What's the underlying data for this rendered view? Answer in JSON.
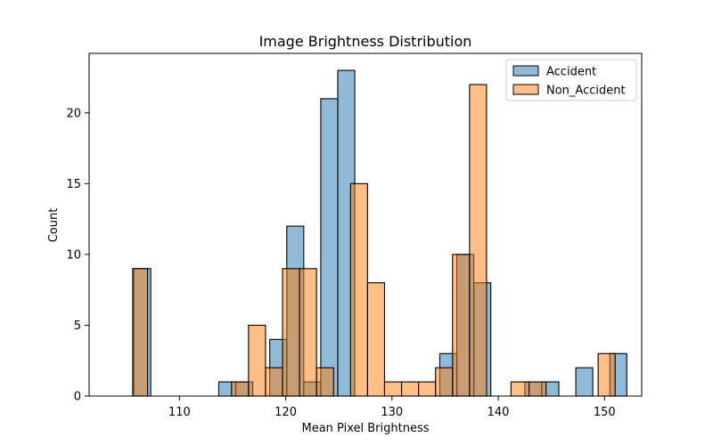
{
  "chart_data": {
    "type": "bar",
    "title": "Image Brightness Distribution",
    "xlabel": "Mean Pixel Brightness",
    "ylabel": "Count",
    "xlim": [
      101.5,
      153.5
    ],
    "ylim": [
      0,
      24.2
    ],
    "xticks": [
      110,
      120,
      130,
      140,
      150
    ],
    "yticks": [
      0,
      5,
      10,
      15,
      20
    ],
    "grid": false,
    "legend": "top-right",
    "series": [
      {
        "name": "Accident",
        "color": "#1f77b4",
        "bins": [
          {
            "x0": 105.7,
            "x1": 107.3,
            "count": 9
          },
          {
            "x0": 113.7,
            "x1": 115.3,
            "count": 1
          },
          {
            "x0": 115.3,
            "x1": 116.9,
            "count": 1
          },
          {
            "x0": 118.5,
            "x1": 120.1,
            "count": 4
          },
          {
            "x0": 120.1,
            "x1": 121.7,
            "count": 12
          },
          {
            "x0": 121.7,
            "x1": 123.3,
            "count": 1
          },
          {
            "x0": 123.3,
            "x1": 124.9,
            "count": 21
          },
          {
            "x0": 124.9,
            "x1": 126.5,
            "count": 23
          },
          {
            "x0": 134.5,
            "x1": 136.1,
            "count": 3
          },
          {
            "x0": 136.1,
            "x1": 137.7,
            "count": 10
          },
          {
            "x0": 137.7,
            "x1": 139.3,
            "count": 8
          },
          {
            "x0": 142.5,
            "x1": 144.1,
            "count": 1
          },
          {
            "x0": 144.1,
            "x1": 145.7,
            "count": 1
          },
          {
            "x0": 147.3,
            "x1": 148.9,
            "count": 2
          },
          {
            "x0": 150.5,
            "x1": 152.1,
            "count": 3
          }
        ]
      },
      {
        "name": "Non_Accident",
        "color": "#ff7f0e",
        "bins": [
          {
            "x0": 105.6,
            "x1": 107.0,
            "count": 9
          },
          {
            "x0": 114.9,
            "x1": 116.5,
            "count": 1
          },
          {
            "x0": 116.5,
            "x1": 118.1,
            "count": 5
          },
          {
            "x0": 118.1,
            "x1": 119.7,
            "count": 2
          },
          {
            "x0": 119.7,
            "x1": 121.3,
            "count": 9
          },
          {
            "x0": 121.3,
            "x1": 122.9,
            "count": 9
          },
          {
            "x0": 122.9,
            "x1": 124.5,
            "count": 2
          },
          {
            "x0": 124.5,
            "x1": 126.1,
            "count": 0
          },
          {
            "x0": 126.1,
            "x1": 127.7,
            "count": 15
          },
          {
            "x0": 127.7,
            "x1": 129.3,
            "count": 8
          },
          {
            "x0": 129.3,
            "x1": 130.9,
            "count": 1
          },
          {
            "x0": 130.9,
            "x1": 132.5,
            "count": 1
          },
          {
            "x0": 132.5,
            "x1": 134.1,
            "count": 1
          },
          {
            "x0": 134.1,
            "x1": 135.7,
            "count": 2
          },
          {
            "x0": 135.7,
            "x1": 137.3,
            "count": 10
          },
          {
            "x0": 137.3,
            "x1": 138.9,
            "count": 22
          },
          {
            "x0": 141.2,
            "x1": 142.9,
            "count": 1
          },
          {
            "x0": 142.9,
            "x1": 144.5,
            "count": 1
          },
          {
            "x0": 149.4,
            "x1": 151.0,
            "count": 3
          }
        ]
      }
    ]
  }
}
